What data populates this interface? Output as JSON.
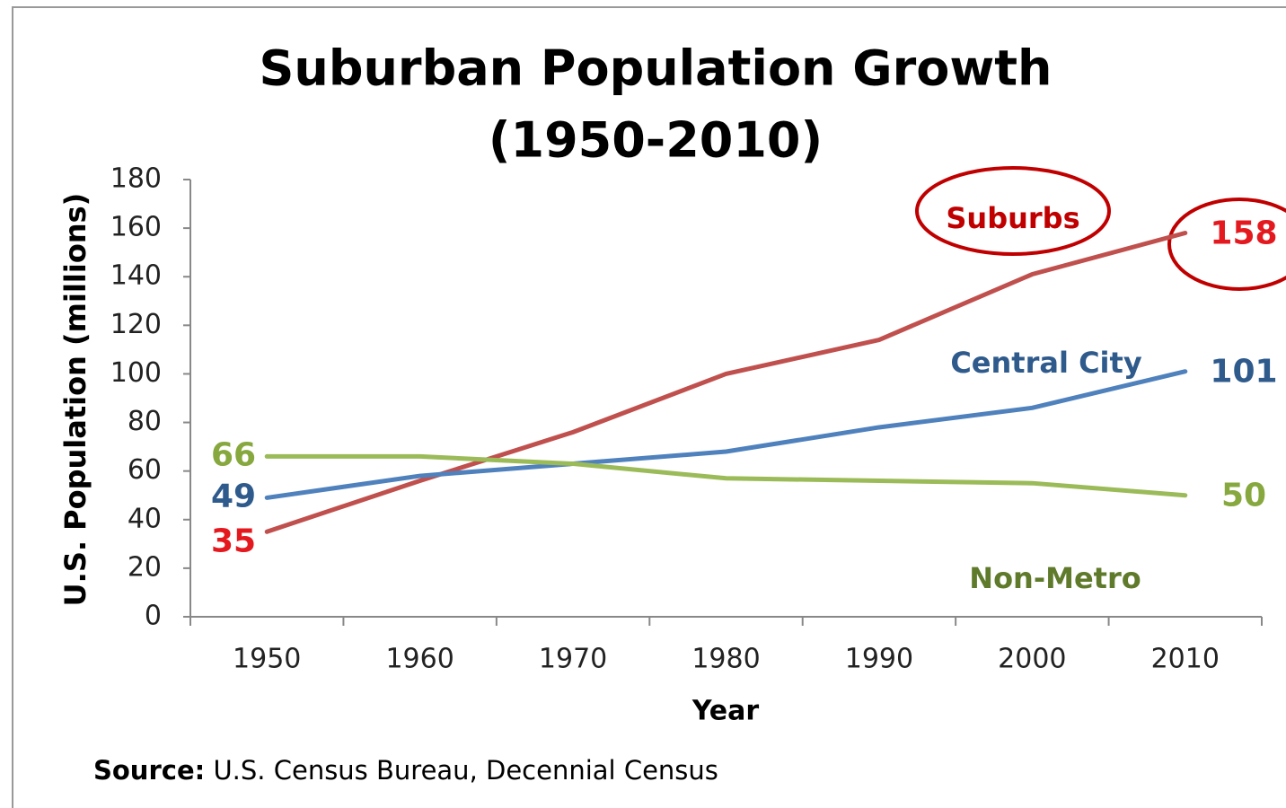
{
  "chart_data": {
    "type": "line",
    "title": "Suburban Population Growth",
    "subtitle": "(1950-2010)",
    "y_label": "U.S. Population (millions)",
    "x_label": "Year",
    "source_label": "Source:",
    "source": "U.S. Census Bureau, Decennial Census",
    "categories": [
      "1950",
      "1960",
      "1970",
      "1980",
      "1990",
      "2000",
      "2010"
    ],
    "ylim": [
      0,
      180
    ],
    "yticks": [
      0,
      20,
      40,
      60,
      80,
      100,
      120,
      140,
      160,
      180
    ],
    "grid": false,
    "series": [
      {
        "name": "Suburbs",
        "color": "#c0504d",
        "label_color": "#e3191f",
        "name_color": "#c00000",
        "values": [
          35,
          56,
          76,
          100,
          114,
          141,
          158
        ]
      },
      {
        "name": "Central City",
        "color": "#4f81bd",
        "label_color": "#2e5a8c",
        "name_color": "#2e5a8c",
        "values": [
          49,
          58,
          63,
          68,
          78,
          86,
          101
        ]
      },
      {
        "name": "Non-Metro",
        "color": "#9bbb59",
        "label_color": "#86a83e",
        "name_color": "#5e7a2a",
        "values": [
          66,
          66,
          63,
          57,
          56,
          55,
          50
        ]
      }
    ]
  }
}
